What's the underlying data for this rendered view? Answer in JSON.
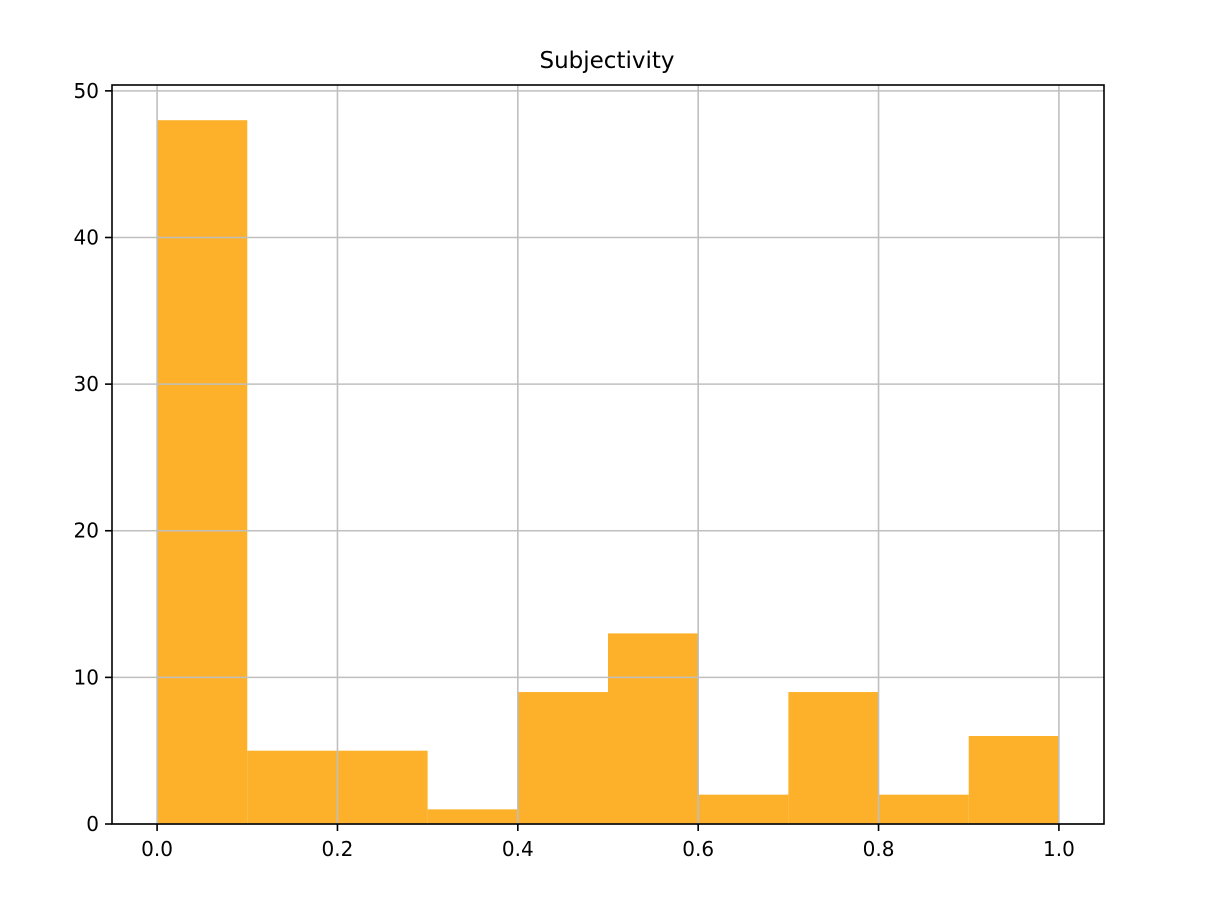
{
  "chart_data": {
    "type": "bar",
    "title": "Subjectivity",
    "xlabel": "",
    "ylabel": "",
    "bin_edges": [
      0.0,
      0.1,
      0.2,
      0.3,
      0.4,
      0.5,
      0.6,
      0.7,
      0.8,
      0.9,
      1.0
    ],
    "values": [
      48,
      5,
      5,
      1,
      9,
      13,
      2,
      9,
      2,
      6
    ],
    "xlim": [
      -0.05,
      1.05
    ],
    "ylim": [
      0,
      50.4
    ],
    "xticks": [
      0.0,
      0.2,
      0.4,
      0.6,
      0.8,
      1.0
    ],
    "xtick_labels": [
      "0.0",
      "0.2",
      "0.4",
      "0.6",
      "0.8",
      "1.0"
    ],
    "yticks": [
      0,
      10,
      20,
      30,
      40,
      50
    ],
    "ytick_labels": [
      "0",
      "10",
      "20",
      "30",
      "40",
      "50"
    ],
    "grid": true,
    "bar_color": "#fdb12a",
    "grid_color": "#bfbfbf"
  }
}
